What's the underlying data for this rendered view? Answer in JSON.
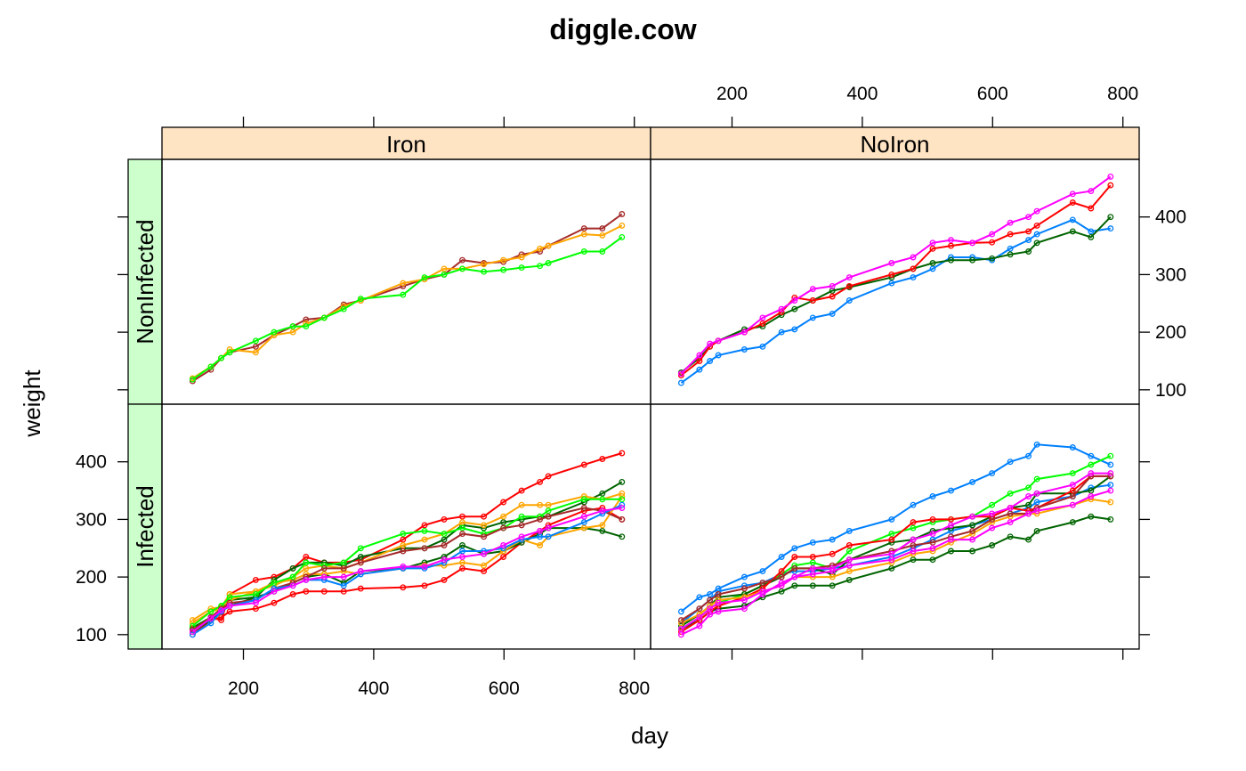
{
  "chart_data": {
    "type": "line",
    "title": "diggle.cow",
    "xlabel": "day",
    "ylabel": "weight",
    "xlim": [
      75,
      825
    ],
    "ylim": [
      75,
      500
    ],
    "x_ticks": [
      200,
      400,
      600,
      800
    ],
    "y_ticks": [
      100,
      200,
      300,
      400
    ],
    "strip_color": "#ffe4c4",
    "row_strip_color": "#ccffcc",
    "series_colors": [
      "#0080ff",
      "#ff00ff",
      "#006400",
      "#ff0000",
      "#ffa500",
      "#00ff00",
      "#a52a2a"
    ],
    "columns": [
      "Iron",
      "NoIron"
    ],
    "rows": [
      "NonInfected",
      "Infected"
    ],
    "x": [
      122,
      150,
      166,
      179,
      219,
      247,
      276,
      296,
      324,
      354,
      380,
      445,
      478,
      508,
      536,
      569,
      599,
      627,
      655,
      668,
      723,
      751,
      781
    ],
    "panels": [
      {
        "col": "Iron",
        "row": "NonInfected",
        "series": [
          {
            "color": "#a52a2a",
            "values": [
              115,
              135,
              155,
              165,
              175,
              195,
              210,
              222,
              225,
              248,
              255,
              280,
              292,
              300,
              325,
              320,
              322,
              335,
              340,
              350,
              380,
              380,
              405
            ]
          },
          {
            "color": "#ffa500",
            "values": [
              120,
              140,
              155,
              170,
              165,
              195,
              200,
              215,
              225,
              245,
              255,
              285,
              292,
              310,
              310,
              318,
              325,
              330,
              345,
              350,
              370,
              368,
              385
            ]
          },
          {
            "color": "#00ff00",
            "values": [
              118,
              140,
              155,
              165,
              185,
              200,
              210,
              210,
              225,
              240,
              258,
              265,
              295,
              300,
              310,
              305,
              308,
              312,
              315,
              320,
              340,
              340,
              365
            ]
          }
        ]
      },
      {
        "col": "NoIron",
        "row": "NonInfected",
        "series": [
          {
            "color": "#0080ff",
            "values": [
              112,
              135,
              150,
              160,
              170,
              175,
              200,
              205,
              225,
              232,
              255,
              285,
              295,
              310,
              330,
              330,
              325,
              345,
              360,
              370,
              395,
              375,
              380
            ]
          },
          {
            "color": "#006400",
            "values": [
              130,
              155,
              175,
              185,
              205,
              210,
              230,
              240,
              255,
              272,
              278,
              295,
              310,
              320,
              325,
              325,
              328,
              335,
              340,
              355,
              375,
              365,
              400
            ]
          },
          {
            "color": "#ff0000",
            "values": [
              125,
              150,
              175,
              185,
              200,
              215,
              235,
              260,
              255,
              262,
              280,
              300,
              310,
              345,
              350,
              355,
              356,
              370,
              375,
              385,
              425,
              415,
              455
            ]
          },
          {
            "color": "#ff00ff",
            "values": [
              128,
              160,
              180,
              185,
              200,
              225,
              240,
              255,
              275,
              280,
              295,
              320,
              330,
              355,
              360,
              355,
              370,
              390,
              400,
              410,
              440,
              445,
              470
            ]
          }
        ]
      },
      {
        "col": "Iron",
        "row": "Infected",
        "series": [
          {
            "color": "#ff0000",
            "values": [
              110,
              130,
              125,
              170,
              195,
              200,
              215,
              235,
              225,
              225,
              230,
              265,
              290,
              300,
              305,
              305,
              330,
              350,
              365,
              375,
              395,
              405,
              415
            ]
          },
          {
            "color": "#ff0000",
            "values": [
              100,
              125,
              130,
              140,
              145,
              155,
              170,
              175,
              175,
              175,
              180,
              182,
              185,
              195,
              215,
              210,
              235,
              260,
              280,
              290,
              315,
              320,
              300
            ]
          },
          {
            "color": "#006400",
            "values": [
              112,
              130,
              145,
              160,
              165,
              195,
              215,
              225,
              225,
              220,
              235,
              250,
              250,
              265,
              290,
              285,
              295,
              300,
              305,
              305,
              330,
              345,
              365
            ]
          },
          {
            "color": "#006400",
            "values": [
              105,
              125,
              140,
              150,
              165,
              175,
              190,
              200,
              205,
              190,
              210,
              215,
              225,
              235,
              255,
              240,
              245,
              260,
              275,
              285,
              285,
              280,
              270
            ]
          },
          {
            "color": "#ffa500",
            "values": [
              125,
              145,
              148,
              170,
              175,
              185,
              200,
              215,
              220,
              215,
              225,
              255,
              265,
              275,
              295,
              290,
              305,
              325,
              325,
              325,
              340,
              335,
              345
            ]
          },
          {
            "color": "#ffa500",
            "values": [
              120,
              140,
              145,
              160,
              175,
              190,
              195,
              205,
              205,
              210,
              205,
              215,
              220,
              220,
              225,
              220,
              245,
              265,
              255,
              270,
              285,
              290,
              340
            ]
          },
          {
            "color": "#00ff00",
            "values": [
              115,
              140,
              150,
              165,
              170,
              190,
              200,
              225,
              220,
              225,
              250,
              275,
              280,
              275,
              285,
              275,
              285,
              305,
              305,
              315,
              335,
              335,
              335
            ]
          },
          {
            "color": "#a52a2a",
            "values": [
              108,
              130,
              145,
              155,
              160,
              180,
              190,
              200,
              215,
              215,
              225,
              245,
              250,
              255,
              275,
              270,
              285,
              290,
              300,
              305,
              320,
              315,
              300
            ]
          },
          {
            "color": "#0080ff",
            "values": [
              100,
              120,
              140,
              150,
              160,
              180,
              185,
              195,
              195,
              185,
              205,
              215,
              215,
              225,
              245,
              245,
              250,
              265,
              270,
              270,
              295,
              310,
              325
            ]
          },
          {
            "color": "#ff00ff",
            "values": [
              105,
              128,
              142,
              150,
              155,
              175,
              185,
              195,
              200,
              200,
              210,
              218,
              218,
              230,
              235,
              240,
              255,
              270,
              280,
              285,
              305,
              315,
              320
            ]
          }
        ]
      },
      {
        "col": "NoIron",
        "row": "Infected",
        "series": [
          {
            "color": "#0080ff",
            "values": [
              140,
              165,
              170,
              180,
              200,
              210,
              235,
              250,
              260,
              265,
              280,
              300,
              325,
              340,
              350,
              365,
              380,
              400,
              410,
              430,
              425,
              410,
              395
            ]
          },
          {
            "color": "#0080ff",
            "values": [
              120,
              145,
              160,
              175,
              185,
              190,
              205,
              210,
              210,
              215,
              220,
              235,
              250,
              265,
              280,
              290,
              300,
              310,
              320,
              330,
              340,
              355,
              360
            ]
          },
          {
            "color": "#00ff00",
            "values": [
              110,
              130,
              145,
              155,
              170,
              185,
              205,
              220,
              225,
              215,
              245,
              275,
              285,
              295,
              300,
              305,
              325,
              345,
              355,
              370,
              380,
              395,
              410
            ]
          },
          {
            "color": "#006400",
            "values": [
              115,
              135,
              150,
              165,
              170,
              185,
              200,
              215,
              215,
              205,
              230,
              260,
              265,
              280,
              285,
              290,
              305,
              320,
              325,
              345,
              345,
              350,
              375
            ]
          },
          {
            "color": "#006400",
            "values": [
              110,
              125,
              140,
              145,
              150,
              165,
              175,
              185,
              185,
              185,
              195,
              215,
              230,
              230,
              245,
              245,
              255,
              270,
              265,
              280,
              295,
              305,
              300
            ]
          },
          {
            "color": "#ff0000",
            "values": [
              105,
              125,
              140,
              150,
              165,
              180,
              210,
              235,
              235,
              240,
              255,
              265,
              295,
              300,
              300,
              305,
              305,
              320,
              315,
              320,
              350,
              375,
              375
            ]
          },
          {
            "color": "#ffa500",
            "values": [
              120,
              135,
              150,
              160,
              165,
              175,
              185,
              200,
              200,
              200,
              210,
              225,
              240,
              245,
              260,
              275,
              295,
              305,
              310,
              310,
              325,
              335,
              330
            ]
          },
          {
            "color": "#a52a2a",
            "values": [
              125,
              145,
              160,
              170,
              180,
              190,
              200,
              215,
              215,
              220,
              230,
              245,
              255,
              260,
              270,
              280,
              300,
              310,
              310,
              320,
              340,
              375,
              375
            ]
          },
          {
            "color": "#ff00ff",
            "values": [
              100,
              115,
              135,
              140,
              145,
              170,
              190,
              200,
              215,
              215,
              230,
              240,
              265,
              275,
              290,
              305,
              310,
              320,
              340,
              345,
              360,
              380,
              380
            ]
          },
          {
            "color": "#ff00ff",
            "values": [
              110,
              130,
              145,
              155,
              160,
              175,
              185,
              200,
              205,
              210,
              220,
              230,
              245,
              250,
              265,
              265,
              285,
              295,
              310,
              315,
              325,
              340,
              350
            ]
          }
        ]
      }
    ]
  }
}
